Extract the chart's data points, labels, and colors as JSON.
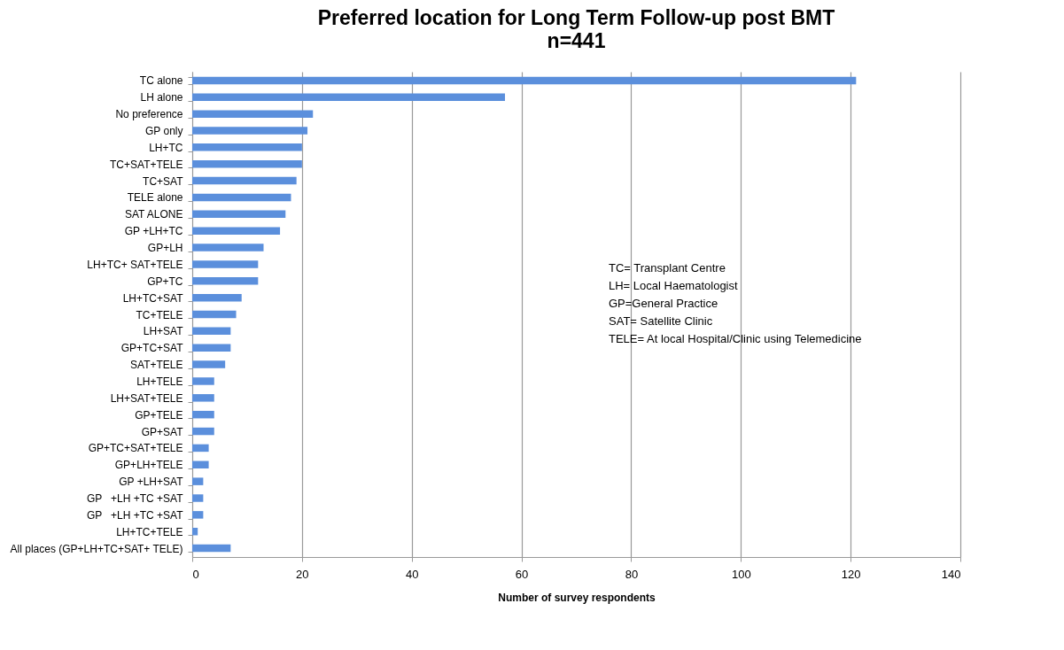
{
  "chart_data": {
    "type": "bar",
    "orientation": "horizontal",
    "title": "Preferred location for Long Term Follow-up post BMT",
    "subtitle": "n=441",
    "xlabel": "Number of survey respondents",
    "categories": [
      "TC alone",
      "LH alone",
      "No preference",
      "GP only",
      "LH+TC",
      "TC+SAT+TELE",
      "TC+SAT",
      "TELE alone",
      "SAT ALONE",
      "GP +LH+TC",
      "GP+LH",
      "LH+TC+ SAT+TELE",
      "GP+TC",
      "LH+TC+SAT",
      "TC+TELE",
      "LH+SAT",
      "GP+TC+SAT",
      "SAT+TELE",
      "LH+TELE",
      "LH+SAT+TELE",
      "GP+TELE",
      "GP+SAT",
      "GP+TC+SAT+TELE",
      "GP+LH+TELE",
      "GP +LH+SAT",
      "GP   +LH +TC +SAT",
      "GP   +LH +TC +SAT",
      "LH+TC+TELE",
      "All places (GP+LH+TC+SAT+ TELE)"
    ],
    "values": [
      121,
      57,
      22,
      21,
      20,
      20,
      19,
      18,
      17,
      16,
      13,
      12,
      12,
      9,
      8,
      7,
      7,
      6,
      4,
      4,
      4,
      4,
      3,
      3,
      2,
      2,
      2,
      1,
      7
    ],
    "color": "#5b8fdc",
    "xlim": [
      0,
      140
    ],
    "xticks": [
      0,
      20,
      40,
      60,
      80,
      100,
      120,
      140
    ],
    "grid": "x",
    "annotations": [
      "TC= Transplant Centre",
      "LH= Local Haematologist",
      "GP=General Practice",
      "SAT= Satellite Clinic",
      "TELE= At local Hospital/Clinic using Telemedicine"
    ]
  }
}
